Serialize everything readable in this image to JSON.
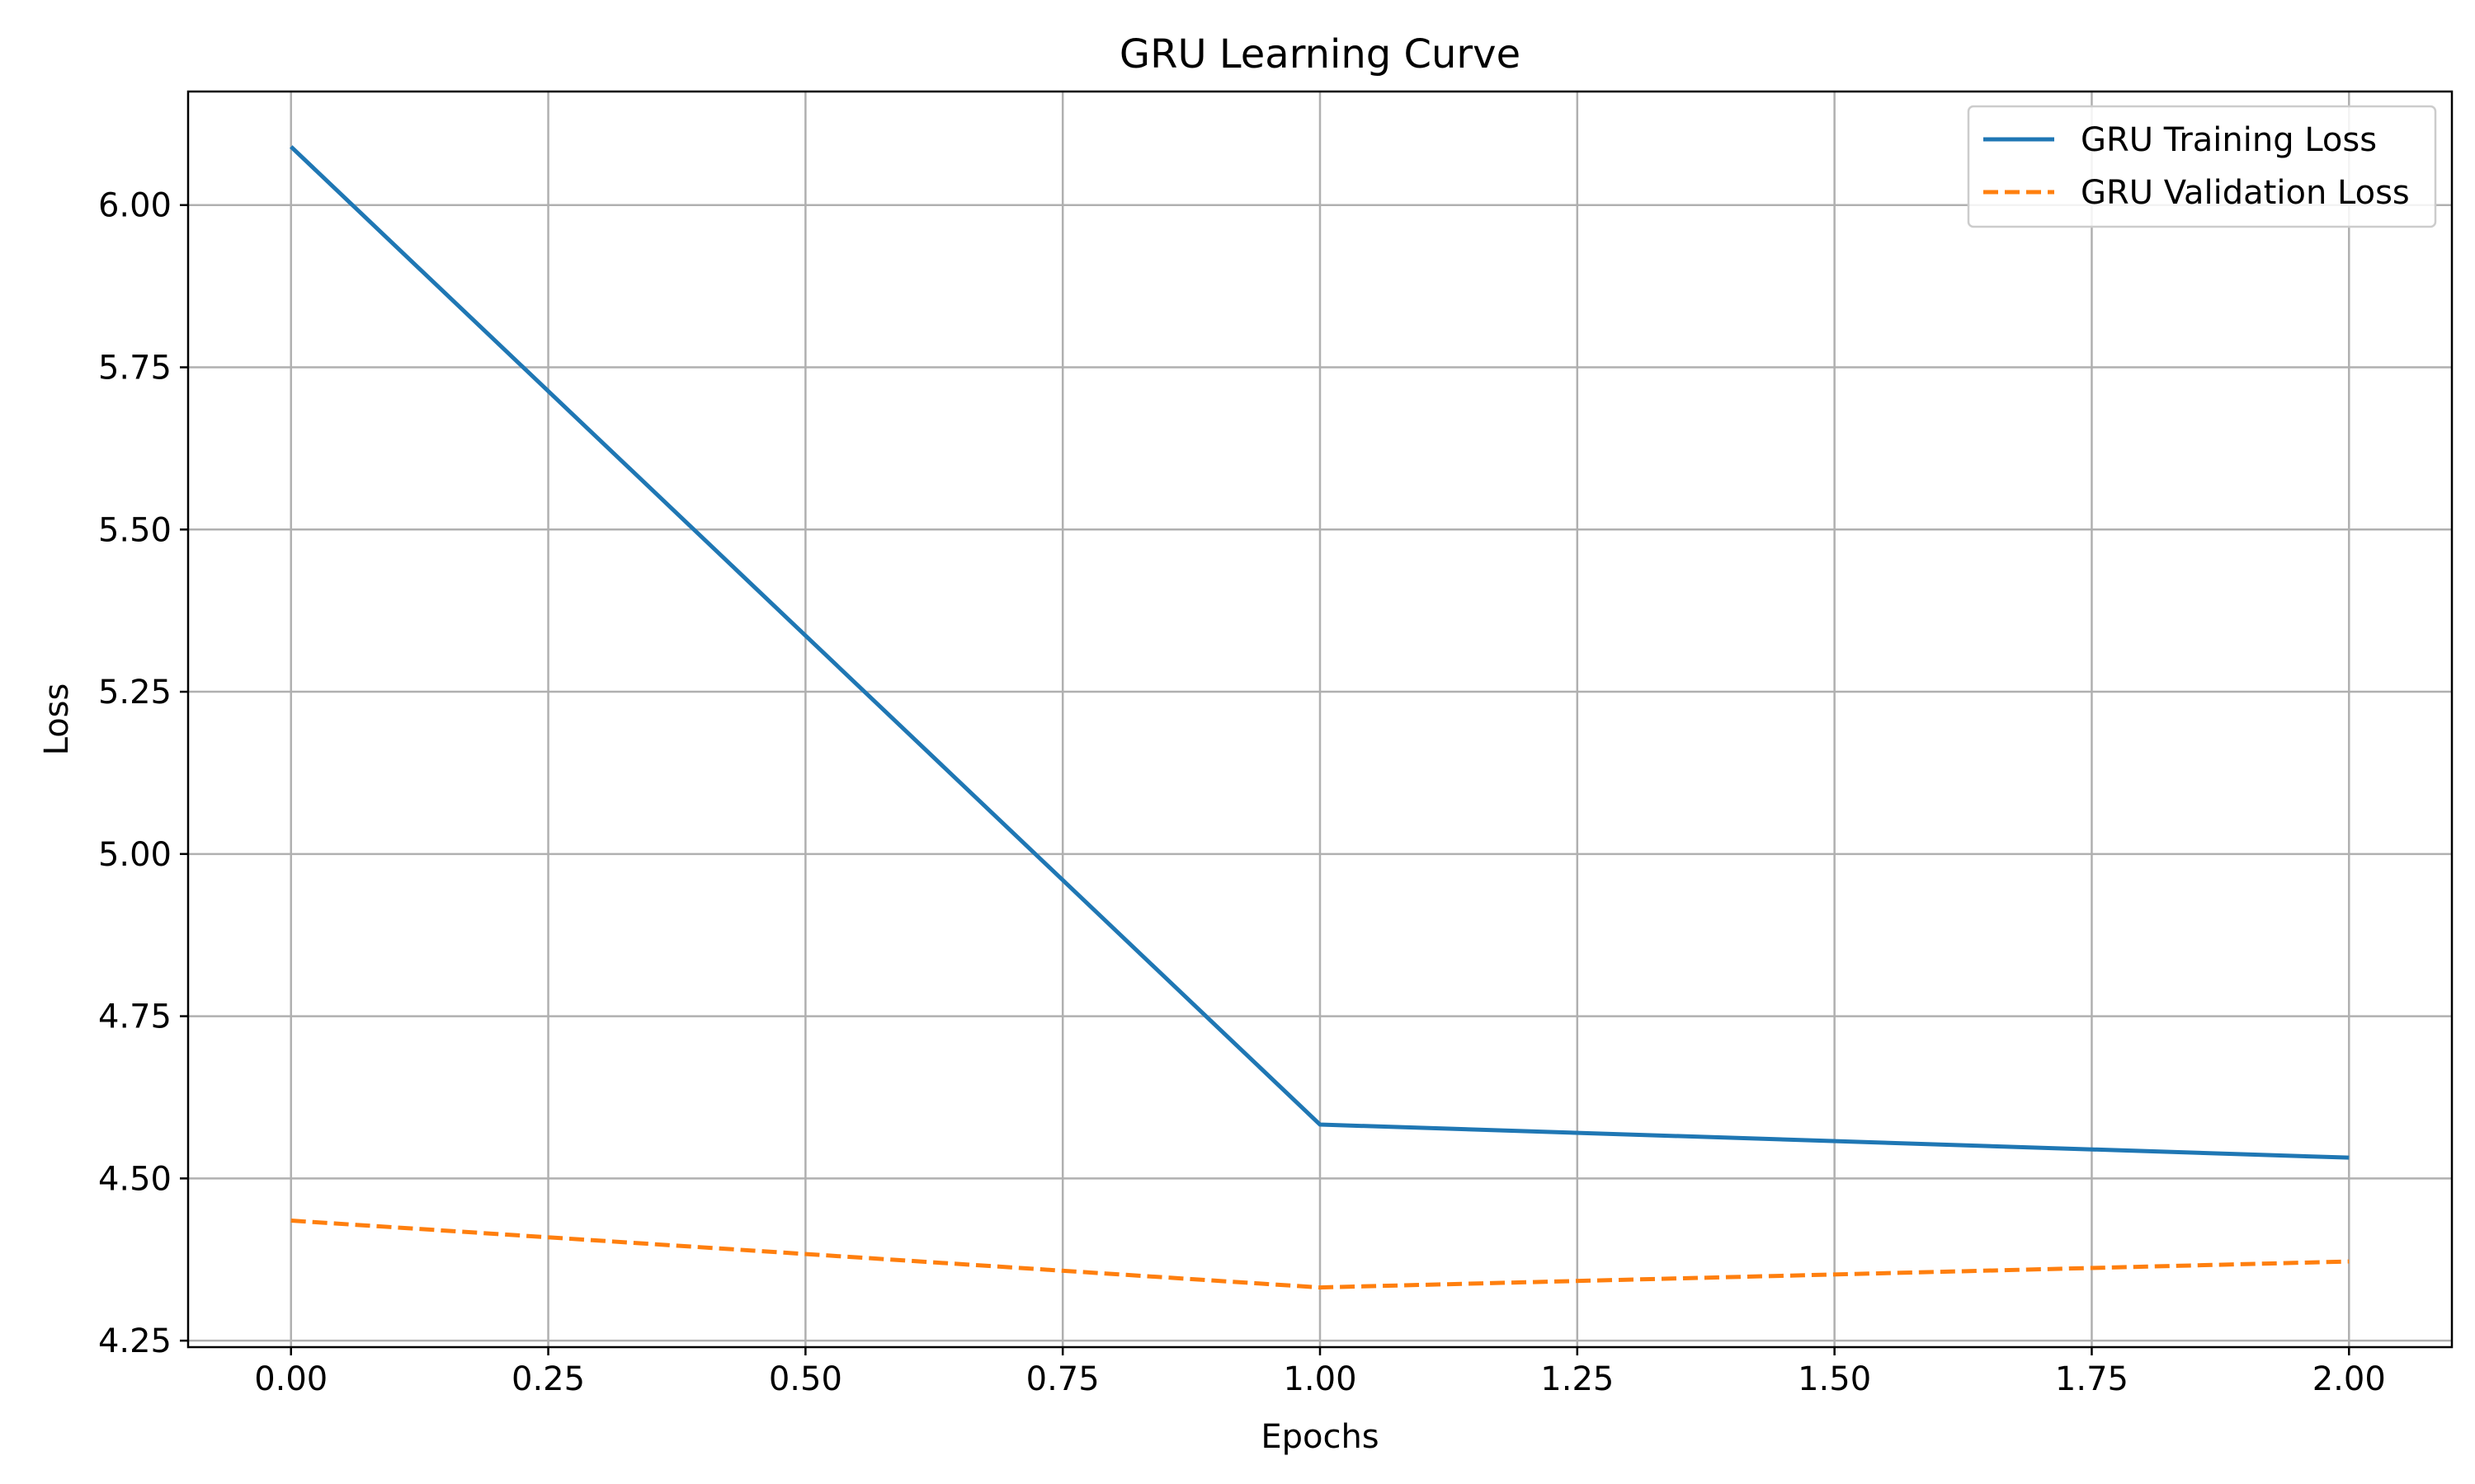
{
  "chart_data": {
    "type": "line",
    "title": "GRU Learning Curve",
    "xlabel": "Epochs",
    "ylabel": "Loss",
    "xlim": [
      -0.1,
      2.1
    ],
    "ylim": [
      4.24,
      6.175
    ],
    "xticks": [
      0.0,
      0.25,
      0.5,
      0.75,
      1.0,
      1.25,
      1.5,
      1.75,
      2.0
    ],
    "xtick_labels": [
      "0.00",
      "0.25",
      "0.50",
      "0.75",
      "1.00",
      "1.25",
      "1.50",
      "1.75",
      "2.00"
    ],
    "yticks": [
      4.25,
      4.5,
      4.75,
      5.0,
      5.25,
      5.5,
      5.75,
      6.0
    ],
    "ytick_labels": [
      "4.25",
      "4.50",
      "4.75",
      "5.00",
      "5.25",
      "5.50",
      "5.75",
      "6.00"
    ],
    "grid": true,
    "legend_position": "top-right",
    "x": [
      0,
      1,
      2
    ],
    "series": [
      {
        "name": "GRU Training Loss",
        "values": [
          6.09,
          4.583,
          4.532
        ],
        "color": "#1f77b4",
        "style": "solid"
      },
      {
        "name": "GRU Validation Loss",
        "values": [
          4.435,
          4.332,
          4.372
        ],
        "color": "#ff7f0e",
        "style": "dashed"
      }
    ]
  }
}
